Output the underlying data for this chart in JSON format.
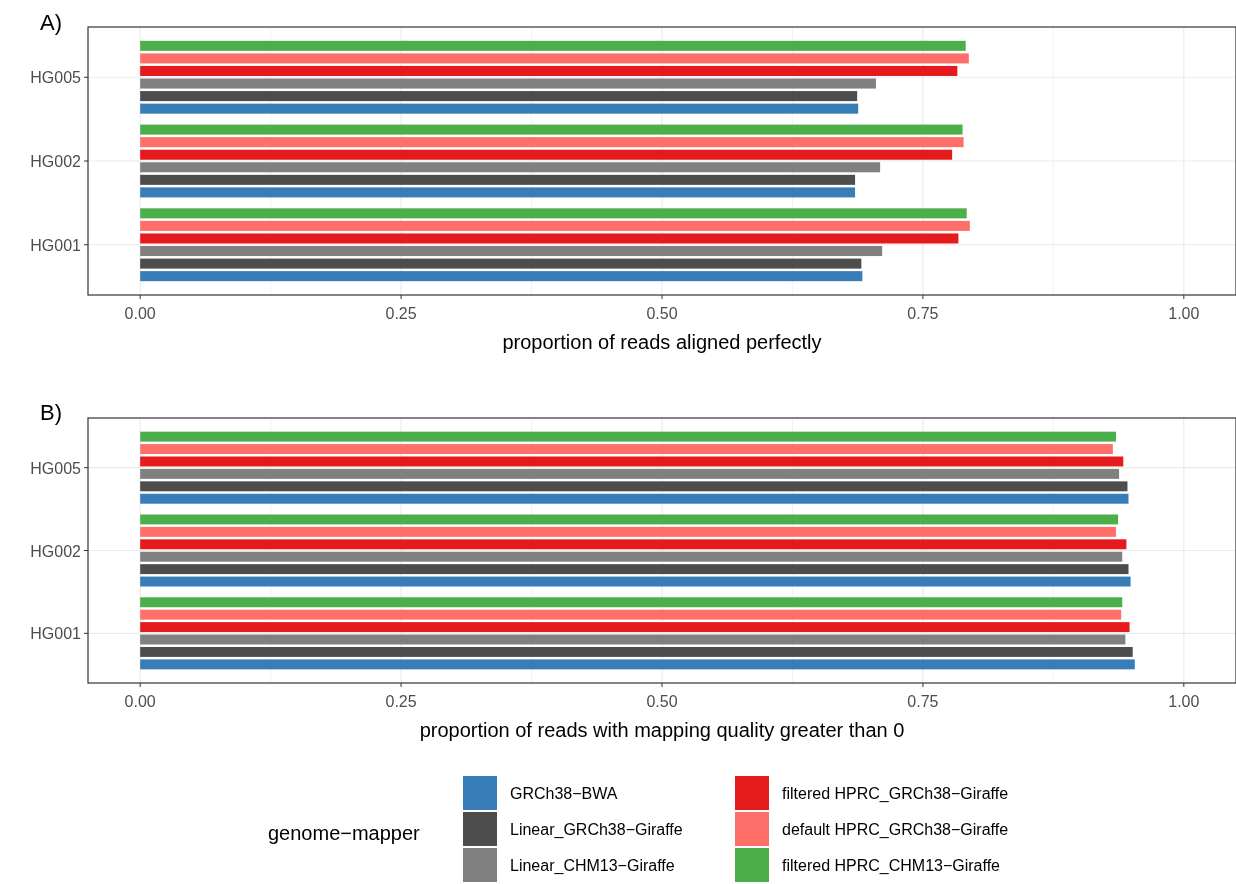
{
  "chart_data": [
    {
      "type": "bar",
      "title": "A)",
      "orientation": "horizontal",
      "xlabel": "proportion of reads aligned perfectly",
      "categories": [
        "HG005",
        "HG002",
        "HG001"
      ],
      "xlim": [
        -0.05,
        1.05
      ],
      "xticks": [
        {
          "value": 0,
          "label": "0.00"
        },
        {
          "value": 0.125,
          "label": null
        },
        {
          "value": 0.25,
          "label": "0.25"
        },
        {
          "value": 0.375,
          "label": null
        },
        {
          "value": 0.5,
          "label": "0.50"
        },
        {
          "value": 0.625,
          "label": null
        },
        {
          "value": 0.75,
          "label": "0.75"
        },
        {
          "value": 0.875,
          "label": null
        },
        {
          "value": 1,
          "label": "1.00"
        }
      ],
      "grid": true,
      "legend": false,
      "series": [
        {
          "color": "#377eb8",
          "values": [
            0.688,
            0.685,
            0.692
          ]
        },
        {
          "color": "#4d4d4d",
          "values": [
            0.687,
            0.685,
            0.691
          ]
        },
        {
          "color": "#808080",
          "values": [
            0.705,
            0.709,
            0.711
          ]
        },
        {
          "color": "#e41a1c",
          "values": [
            0.783,
            0.778,
            0.784
          ]
        },
        {
          "color": "#ff6f69",
          "values": [
            0.794,
            0.789,
            0.795
          ]
        },
        {
          "color": "#4daf4a",
          "values": [
            0.791,
            0.788,
            0.792
          ]
        }
      ]
    },
    {
      "type": "bar",
      "title": "B)",
      "orientation": "horizontal",
      "xlabel": "proportion of reads with mapping quality greater than 0",
      "categories": [
        "HG005",
        "HG002",
        "HG001"
      ],
      "xlim": [
        -0.05,
        1.05
      ],
      "xticks": [
        {
          "value": 0,
          "label": "0.00"
        },
        {
          "value": 0.125,
          "label": null
        },
        {
          "value": 0.25,
          "label": "0.25"
        },
        {
          "value": 0.375,
          "label": null
        },
        {
          "value": 0.5,
          "label": "0.50"
        },
        {
          "value": 0.625,
          "label": null
        },
        {
          "value": 0.75,
          "label": "0.75"
        },
        {
          "value": 0.875,
          "label": null
        },
        {
          "value": 1,
          "label": "1.00"
        }
      ],
      "grid": true,
      "legend": "bottom",
      "legend_title": "genome−mapper",
      "series": [
        {
          "name": "GRCh38−BWA",
          "color": "#377eb8",
          "values": [
            0.947,
            0.949,
            0.953
          ]
        },
        {
          "name": "Linear_GRCh38−Giraffe",
          "color": "#4d4d4d",
          "values": [
            0.946,
            0.947,
            0.951
          ]
        },
        {
          "name": "Linear_CHM13−Giraffe",
          "color": "#808080",
          "values": [
            0.938,
            0.941,
            0.944
          ]
        },
        {
          "name": "filtered HPRC_GRCh38−Giraffe",
          "color": "#e41a1c",
          "values": [
            0.942,
            0.945,
            0.948
          ]
        },
        {
          "name": "default HPRC_GRCh38−Giraffe",
          "color": "#ff6f69",
          "values": [
            0.932,
            0.935,
            0.94
          ]
        },
        {
          "name": "filtered HPRC_CHM13−Giraffe",
          "color": "#4daf4a",
          "values": [
            0.935,
            0.937,
            0.941
          ]
        }
      ]
    }
  ]
}
